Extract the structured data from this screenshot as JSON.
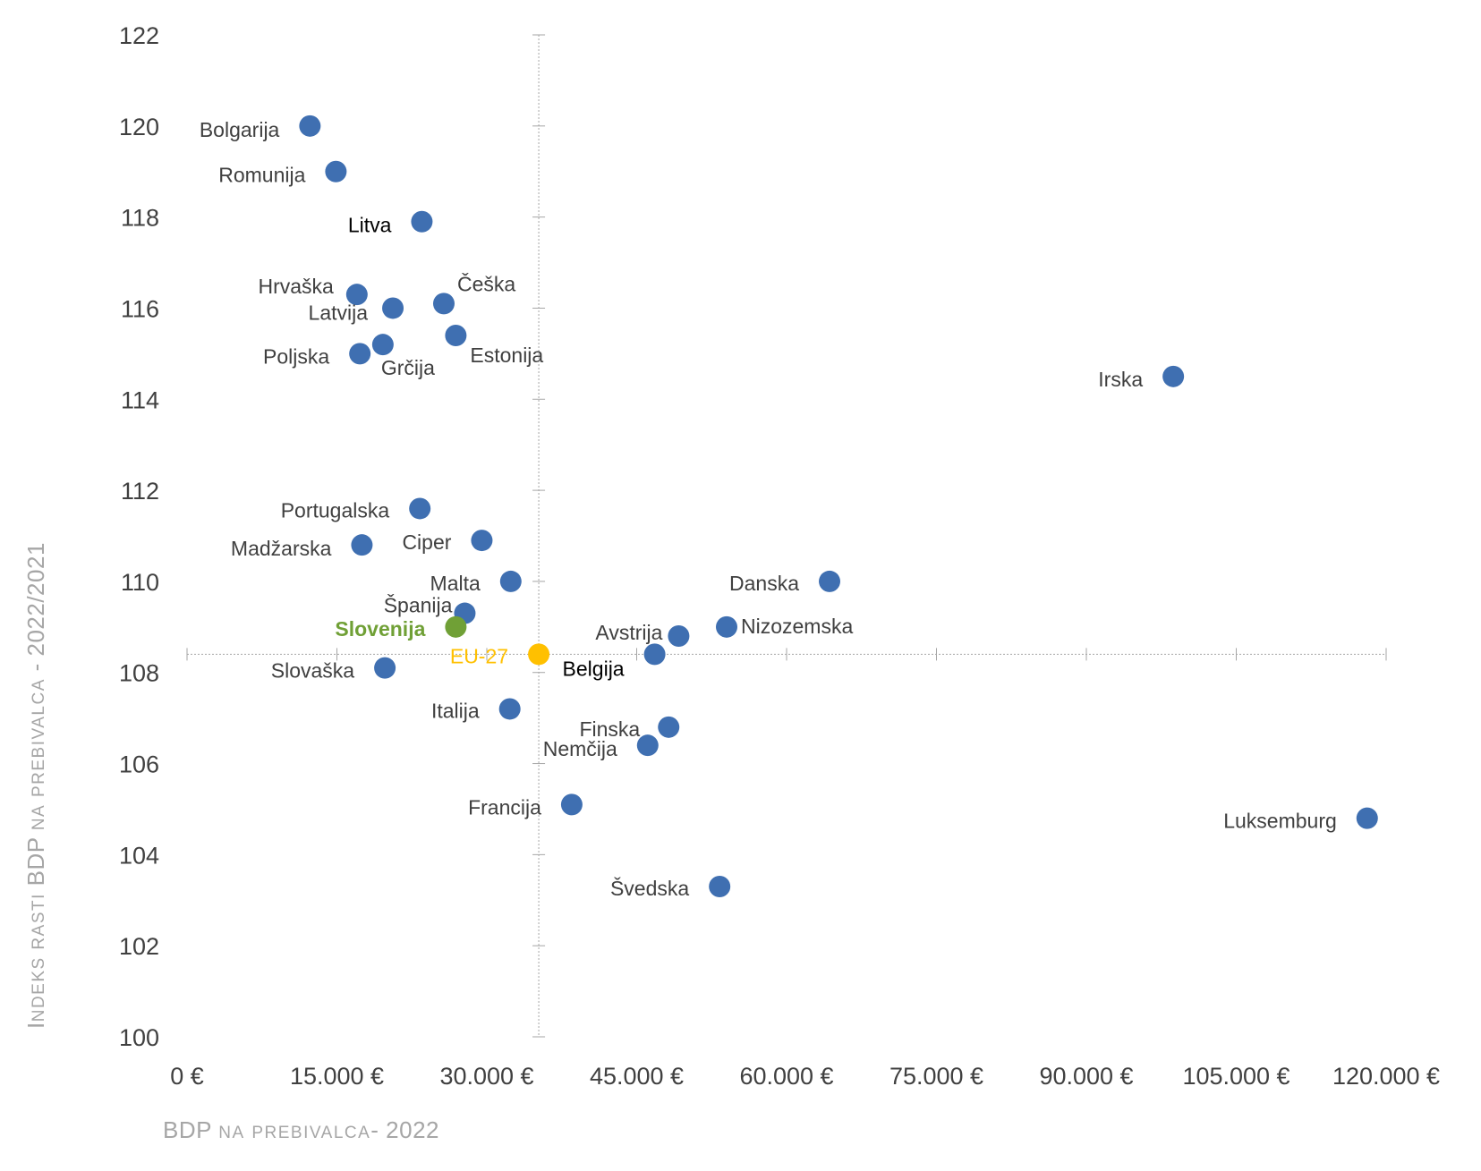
{
  "chart_data": {
    "type": "scatter",
    "xlabel": "BDP na prebivalca- 2022",
    "ylabel": "Indeks rasti BDP na prebivalca  - 2022/2021",
    "xlim": [
      0,
      120000
    ],
    "ylim": [
      100,
      122
    ],
    "x_ticks": [
      "0 €",
      "15.000 €",
      "30.000 €",
      "45.000 €",
      "60.000 €",
      "75.000 €",
      "90.000 €",
      "105.000 €",
      "120.000 €"
    ],
    "y_ticks": [
      "100",
      "102",
      "104",
      "106",
      "108",
      "110",
      "112",
      "114",
      "116",
      "118",
      "120",
      "122"
    ],
    "grid": false,
    "crosshair": {
      "x": 35200,
      "y": 108.4
    },
    "colors": {
      "default": "#3f6fb1",
      "highlight": "#70a036",
      "reference": "#ffc000",
      "axis": "#a6a6a6"
    },
    "points": [
      {
        "label": "Bolgarija",
        "x": 12300,
        "y": 120.0,
        "style": "default",
        "text_color": "#404040"
      },
      {
        "label": "Romunija",
        "x": 14900,
        "y": 119.0,
        "style": "default",
        "text_color": "#404040"
      },
      {
        "label": "Litva",
        "x": 23500,
        "y": 117.9,
        "style": "default",
        "text_color": "#000000"
      },
      {
        "label": "Hrvaška",
        "x": 17000,
        "y": 116.3,
        "style": "default",
        "text_color": "#404040"
      },
      {
        "label": "Latvija",
        "x": 20600,
        "y": 116.0,
        "style": "default",
        "text_color": "#404040"
      },
      {
        "label": "Češka",
        "x": 25700,
        "y": 116.1,
        "style": "default",
        "text_color": "#404040"
      },
      {
        "label": "Grčija",
        "x": 19600,
        "y": 115.2,
        "style": "default",
        "text_color": "#404040"
      },
      {
        "label": "Poljska",
        "x": 17300,
        "y": 115.0,
        "style": "default",
        "text_color": "#404040"
      },
      {
        "label": "Estonija",
        "x": 26900,
        "y": 115.4,
        "style": "default",
        "text_color": "#404040"
      },
      {
        "label": "Irska",
        "x": 98700,
        "y": 114.5,
        "style": "default",
        "text_color": "#404040"
      },
      {
        "label": "Portugalska",
        "x": 23300,
        "y": 111.6,
        "style": "default",
        "text_color": "#404040"
      },
      {
        "label": "Ciper",
        "x": 29500,
        "y": 110.9,
        "style": "default",
        "text_color": "#404040"
      },
      {
        "label": "Madžarska",
        "x": 17500,
        "y": 110.8,
        "style": "default",
        "text_color": "#404040"
      },
      {
        "label": "Malta",
        "x": 32400,
        "y": 110.0,
        "style": "default",
        "text_color": "#404040"
      },
      {
        "label": "Danska",
        "x": 64300,
        "y": 110.0,
        "style": "default",
        "text_color": "#404040"
      },
      {
        "label": "Španija",
        "x": 27800,
        "y": 109.3,
        "style": "default",
        "text_color": "#404040"
      },
      {
        "label": "Slovenija",
        "x": 26900,
        "y": 109.0,
        "style": "highlight",
        "text_color": "#70a036"
      },
      {
        "label": "Nizozemska",
        "x": 54000,
        "y": 109.0,
        "style": "default",
        "text_color": "#404040"
      },
      {
        "label": "Avstrija",
        "x": 49200,
        "y": 108.8,
        "style": "default",
        "text_color": "#404040"
      },
      {
        "label": "EU-27",
        "x": 35200,
        "y": 108.4,
        "style": "reference",
        "text_color": "#ffc000"
      },
      {
        "label": "Belgija",
        "x": 46800,
        "y": 108.4,
        "style": "default",
        "text_color": "#000000"
      },
      {
        "label": "Slovaška",
        "x": 19800,
        "y": 108.1,
        "style": "default",
        "text_color": "#404040"
      },
      {
        "label": "Italija",
        "x": 32300,
        "y": 107.2,
        "style": "default",
        "text_color": "#404040"
      },
      {
        "label": "Finska",
        "x": 48200,
        "y": 106.8,
        "style": "default",
        "text_color": "#404040"
      },
      {
        "label": "Nemčija",
        "x": 46100,
        "y": 106.4,
        "style": "default",
        "text_color": "#404040"
      },
      {
        "label": "Francija",
        "x": 38500,
        "y": 105.1,
        "style": "default",
        "text_color": "#404040"
      },
      {
        "label": "Luksemburg",
        "x": 118100,
        "y": 104.8,
        "style": "default",
        "text_color": "#404040"
      },
      {
        "label": "Švedska",
        "x": 53300,
        "y": 103.3,
        "style": "default",
        "text_color": "#404040"
      }
    ]
  }
}
